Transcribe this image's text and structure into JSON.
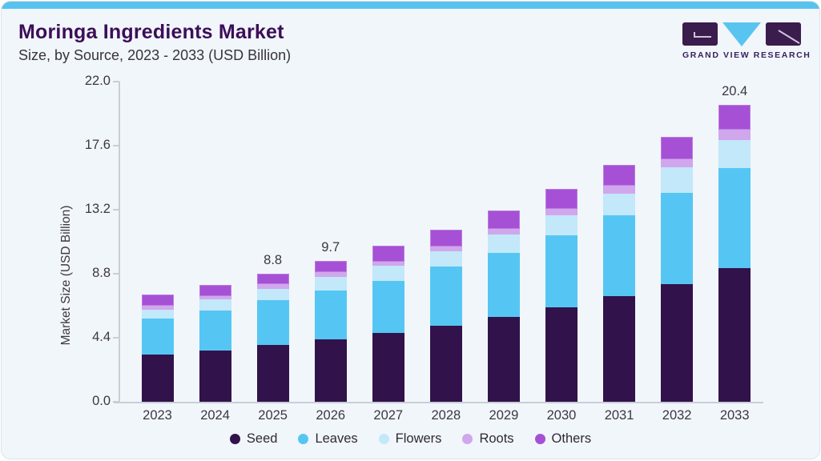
{
  "page": {
    "background_color": "#f1f6fa",
    "top_bar_color": "#58c2ee",
    "axis_color": "#c8ced6",
    "text_color": "#3b3744",
    "title_color": "#3c0e58"
  },
  "header": {
    "title": "Moringa Ingredients Market",
    "subtitle": "Size, by Source, 2023 - 2033 (USD Billion)"
  },
  "logo": {
    "text": "GRAND VIEW RESEARCH",
    "dark_color": "#3a1c4d",
    "blue_color": "#5ac4f0"
  },
  "chart_data": {
    "type": "bar",
    "stacked": true,
    "title": "Moringa Ingredients Market Size, by Source, 2023 - 2033 (USD Billion)",
    "xlabel": "",
    "ylabel": "Market Size (USD Billion)",
    "ylim": [
      0,
      22
    ],
    "ytick_values": [
      0,
      4.4,
      8.8,
      13.2,
      17.6,
      22
    ],
    "ytick_labels": [
      "0.0",
      "4.4",
      "8.8",
      "13.2",
      "17.6",
      "22.0"
    ],
    "grid": false,
    "legend_position": "bottom",
    "categories": [
      "2023",
      "2024",
      "2025",
      "2026",
      "2027",
      "2028",
      "2029",
      "2030",
      "2031",
      "2032",
      "2033"
    ],
    "series": [
      {
        "name": "Seed",
        "color": "#32124b",
        "values": [
          3.25,
          3.5,
          3.92,
          4.27,
          4.72,
          5.23,
          5.84,
          6.5,
          7.24,
          8.1,
          9.16
        ]
      },
      {
        "name": "Leaves",
        "color": "#55c6f3",
        "values": [
          2.46,
          2.79,
          3.09,
          3.36,
          3.59,
          4.06,
          4.4,
          4.96,
          5.57,
          6.23,
          6.91
        ]
      },
      {
        "name": "Flowers",
        "color": "#c2e8fa",
        "values": [
          0.63,
          0.73,
          0.77,
          0.97,
          1.02,
          1.05,
          1.26,
          1.36,
          1.49,
          1.79,
          1.91
        ]
      },
      {
        "name": "Roots",
        "color": "#d0a7ec",
        "values": [
          0.27,
          0.26,
          0.3,
          0.29,
          0.32,
          0.36,
          0.4,
          0.43,
          0.54,
          0.54,
          0.75
        ]
      },
      {
        "name": "Others",
        "color": "#a650d6",
        "values": [
          0.77,
          0.76,
          0.72,
          0.81,
          1.06,
          1.13,
          1.26,
          1.36,
          1.44,
          1.53,
          1.67
        ]
      }
    ],
    "totals": [
      7.38,
      8.04,
      8.8,
      9.7,
      10.71,
      11.83,
      13.16,
      14.61,
      16.28,
      18.19,
      20.4
    ],
    "bar_total_labels": [
      "",
      "",
      "8.8",
      "9.7",
      "",
      "",
      "",
      "",
      "",
      "",
      "20.4"
    ]
  }
}
